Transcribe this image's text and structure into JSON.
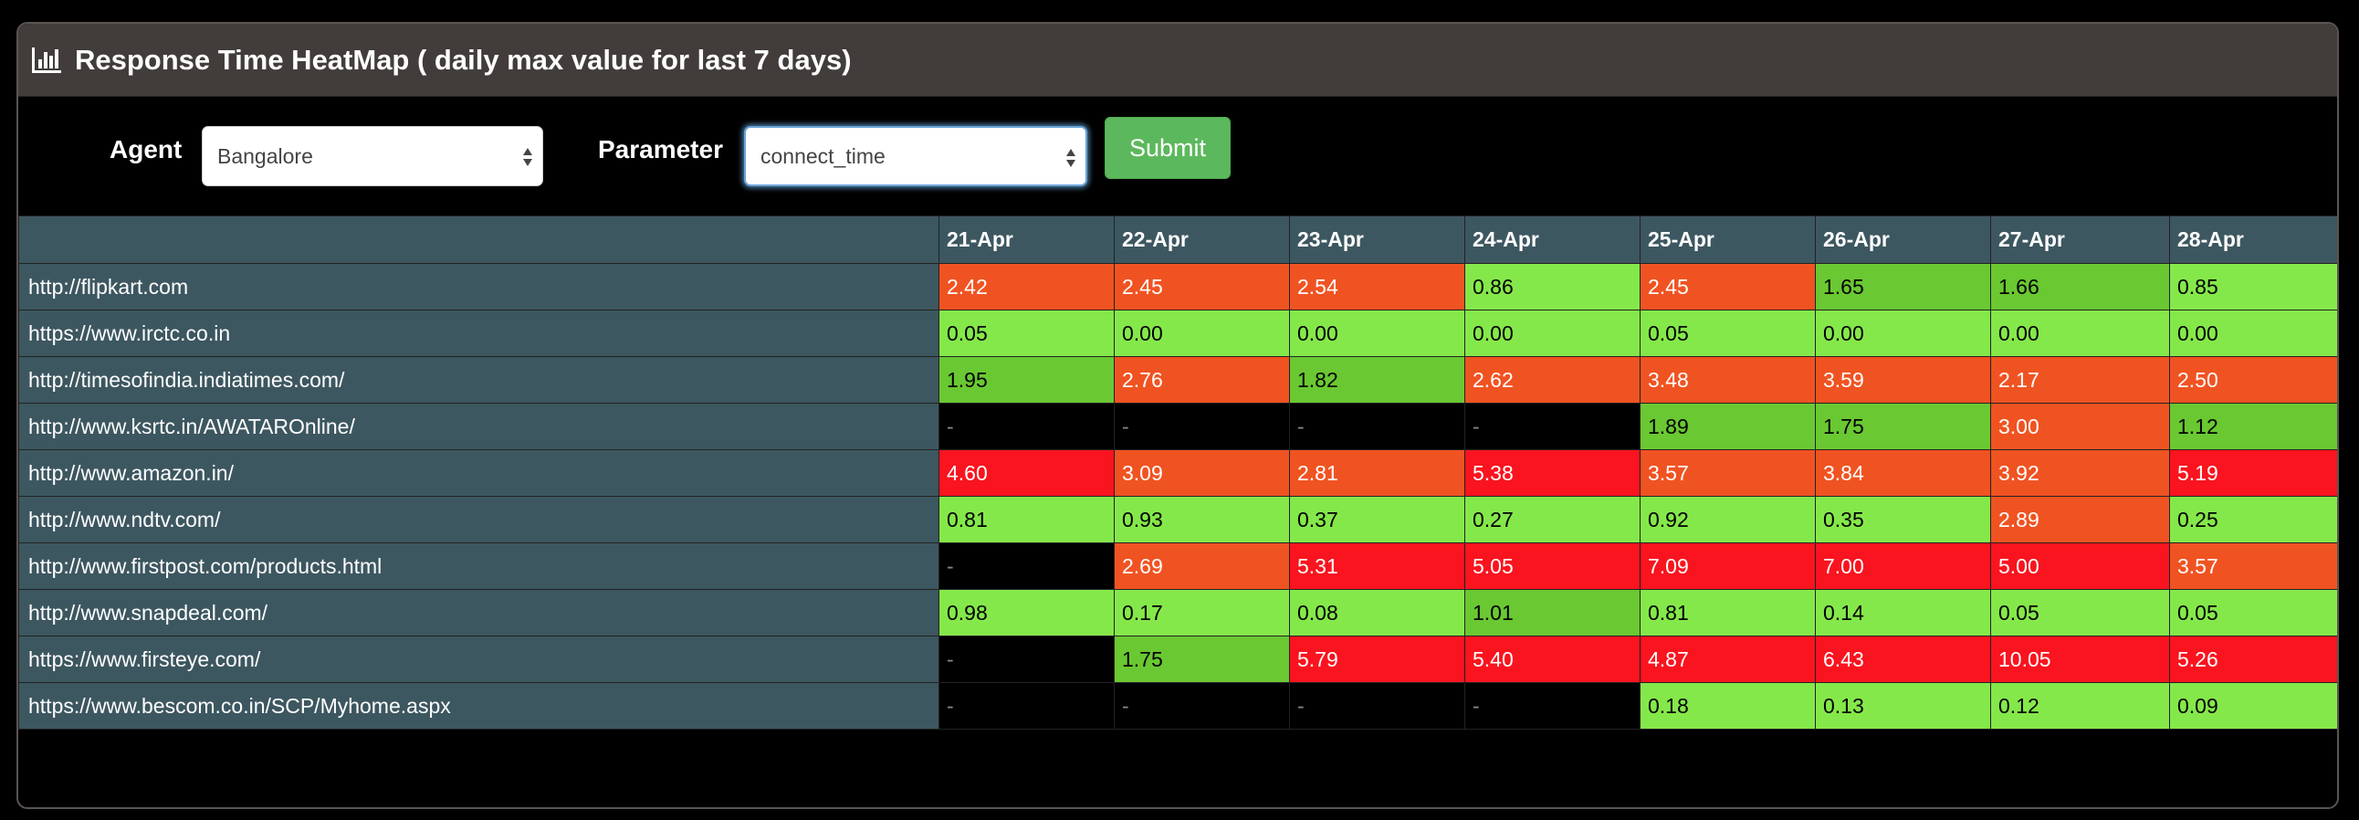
{
  "header": {
    "title": "Response Time HeatMap ( daily max value for last 7 days)",
    "icon": "bar-chart-icon"
  },
  "form": {
    "agent_label": "Agent",
    "agent_value": "Bangalore",
    "parameter_label": "Parameter",
    "parameter_value": "connect_time",
    "submit_label": "Submit"
  },
  "colors": {
    "orange": "#f05322",
    "light_green": "#85e84a",
    "mid_green": "#6ac832",
    "red": "#f9141f",
    "black": "#000000",
    "row_header": "#3d5760"
  },
  "table": {
    "columns": [
      "",
      "21-Apr",
      "22-Apr",
      "23-Apr",
      "24-Apr",
      "25-Apr",
      "26-Apr",
      "27-Apr",
      "28-Apr"
    ],
    "rows": [
      {
        "site": "http://flipkart.com",
        "cells": [
          [
            "2.42",
            "orange"
          ],
          [
            "2.45",
            "orange"
          ],
          [
            "2.54",
            "orange"
          ],
          [
            "0.86",
            "light"
          ],
          [
            "2.45",
            "orange"
          ],
          [
            "1.65",
            "mid"
          ],
          [
            "1.66",
            "mid"
          ],
          [
            "0.85",
            "light"
          ]
        ]
      },
      {
        "site": "https://www.irctc.co.in",
        "cells": [
          [
            "0.05",
            "light"
          ],
          [
            "0.00",
            "light"
          ],
          [
            "0.00",
            "light"
          ],
          [
            "0.00",
            "light"
          ],
          [
            "0.05",
            "light"
          ],
          [
            "0.00",
            "light"
          ],
          [
            "0.00",
            "light"
          ],
          [
            "0.00",
            "light"
          ]
        ]
      },
      {
        "site": "http://timesofindia.indiatimes.com/",
        "cells": [
          [
            "1.95",
            "mid"
          ],
          [
            "2.76",
            "orange"
          ],
          [
            "1.82",
            "mid"
          ],
          [
            "2.62",
            "orange"
          ],
          [
            "3.48",
            "orange"
          ],
          [
            "3.59",
            "orange"
          ],
          [
            "2.17",
            "orange"
          ],
          [
            "2.50",
            "orange"
          ]
        ]
      },
      {
        "site": "http://www.ksrtc.in/AWATAROnline/",
        "cells": [
          [
            "-",
            "black"
          ],
          [
            "-",
            "black"
          ],
          [
            "-",
            "black"
          ],
          [
            "-",
            "black"
          ],
          [
            "1.89",
            "mid"
          ],
          [
            "1.75",
            "mid"
          ],
          [
            "3.00",
            "orange"
          ],
          [
            "1.12",
            "mid"
          ]
        ]
      },
      {
        "site": "http://www.amazon.in/",
        "cells": [
          [
            "4.60",
            "red"
          ],
          [
            "3.09",
            "orange"
          ],
          [
            "2.81",
            "orange"
          ],
          [
            "5.38",
            "red"
          ],
          [
            "3.57",
            "orange"
          ],
          [
            "3.84",
            "orange"
          ],
          [
            "3.92",
            "orange"
          ],
          [
            "5.19",
            "red"
          ]
        ]
      },
      {
        "site": "http://www.ndtv.com/",
        "cells": [
          [
            "0.81",
            "light"
          ],
          [
            "0.93",
            "light"
          ],
          [
            "0.37",
            "light"
          ],
          [
            "0.27",
            "light"
          ],
          [
            "0.92",
            "light"
          ],
          [
            "0.35",
            "light"
          ],
          [
            "2.89",
            "orange"
          ],
          [
            "0.25",
            "light"
          ]
        ]
      },
      {
        "site": "http://www.firstpost.com/products.html",
        "cells": [
          [
            "-",
            "black"
          ],
          [
            "2.69",
            "orange"
          ],
          [
            "5.31",
            "red"
          ],
          [
            "5.05",
            "red"
          ],
          [
            "7.09",
            "red"
          ],
          [
            "7.00",
            "red"
          ],
          [
            "5.00",
            "red"
          ],
          [
            "3.57",
            "orange"
          ]
        ]
      },
      {
        "site": "http://www.snapdeal.com/",
        "cells": [
          [
            "0.98",
            "light"
          ],
          [
            "0.17",
            "light"
          ],
          [
            "0.08",
            "light"
          ],
          [
            "1.01",
            "mid"
          ],
          [
            "0.81",
            "light"
          ],
          [
            "0.14",
            "light"
          ],
          [
            "0.05",
            "light"
          ],
          [
            "0.05",
            "light"
          ]
        ]
      },
      {
        "site": "https://www.firsteye.com/",
        "cells": [
          [
            "-",
            "black"
          ],
          [
            "1.75",
            "mid"
          ],
          [
            "5.79",
            "red"
          ],
          [
            "5.40",
            "red"
          ],
          [
            "4.87",
            "red"
          ],
          [
            "6.43",
            "red"
          ],
          [
            "10.05",
            "red"
          ],
          [
            "5.26",
            "red"
          ]
        ]
      },
      {
        "site": "https://www.bescom.co.in/SCP/Myhome.aspx",
        "cells": [
          [
            "-",
            "black"
          ],
          [
            "-",
            "black"
          ],
          [
            "-",
            "black"
          ],
          [
            "-",
            "black"
          ],
          [
            "0.18",
            "light"
          ],
          [
            "0.13",
            "light"
          ],
          [
            "0.12",
            "light"
          ],
          [
            "0.09",
            "light"
          ]
        ]
      }
    ]
  }
}
